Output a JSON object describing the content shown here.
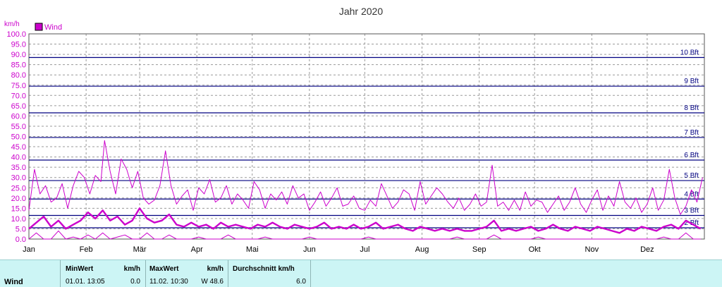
{
  "chart_data": {
    "type": "line",
    "title": "Jahr 2020",
    "ylabel": "km/h",
    "ylim": [
      0,
      100
    ],
    "yticks": [
      "0.0",
      "5.0",
      "10.0",
      "15.0",
      "20.0",
      "25.0",
      "30.0",
      "35.0",
      "40.0",
      "45.0",
      "50.0",
      "55.0",
      "60.0",
      "65.0",
      "70.0",
      "75.0",
      "80.0",
      "85.0",
      "90.0",
      "95.0",
      "100.0"
    ],
    "x_months": [
      "Jan",
      "Feb",
      "Mär",
      "Apr",
      "Mai",
      "Jun",
      "Jul",
      "Aug",
      "Sep",
      "Okt",
      "Nov",
      "Dez"
    ],
    "xlim": [
      0,
      366
    ],
    "legend": {
      "label": "Wind",
      "position": "top-left",
      "color": "#cc00cc"
    },
    "grid": true,
    "beaufort_lines": [
      {
        "label": "2 Bft",
        "value": 5.5
      },
      {
        "label": "3 Bft",
        "value": 11.5
      },
      {
        "label": "4 Bft",
        "value": 19.5
      },
      {
        "label": "5 Bft",
        "value": 28.5
      },
      {
        "label": "6 Bft",
        "value": 38.5
      },
      {
        "label": "7 Bft",
        "value": 49.5
      },
      {
        "label": "8 Bft",
        "value": 61.5
      },
      {
        "label": "9 Bft",
        "value": 74.5
      },
      {
        "label": "10 Bft",
        "value": 88.5
      }
    ],
    "series": [
      {
        "name": "Wind",
        "kind": "max",
        "color": "#cc00cc",
        "x": [
          0,
          3,
          6,
          9,
          12,
          15,
          18,
          21,
          24,
          27,
          30,
          33,
          36,
          39,
          41,
          44,
          47,
          50,
          53,
          56,
          59,
          62,
          65,
          68,
          71,
          74,
          77,
          80,
          83,
          86,
          89,
          92,
          95,
          98,
          101,
          104,
          107,
          110,
          113,
          116,
          119,
          122,
          125,
          128,
          131,
          134,
          137,
          140,
          143,
          146,
          149,
          152,
          155,
          158,
          161,
          164,
          167,
          170,
          173,
          176,
          179,
          182,
          185,
          188,
          191,
          194,
          197,
          200,
          203,
          206,
          209,
          212,
          215,
          218,
          221,
          224,
          227,
          230,
          233,
          236,
          239,
          242,
          245,
          248,
          251,
          254,
          257,
          260,
          263,
          266,
          269,
          272,
          275,
          278,
          281,
          284,
          287,
          290,
          293,
          296,
          299,
          302,
          305,
          308,
          311,
          314,
          317,
          320,
          323,
          326,
          329,
          332,
          335,
          338,
          341,
          344,
          347,
          350,
          353,
          356,
          359,
          362,
          365
        ],
        "values": [
          14,
          34,
          22,
          26,
          18,
          20,
          27,
          15,
          26,
          33,
          30,
          22,
          31,
          28,
          48,
          33,
          22,
          39,
          34,
          25,
          33,
          20,
          17,
          19,
          26,
          43,
          26,
          17,
          21,
          24,
          14,
          25,
          22,
          29,
          18,
          20,
          26,
          17,
          22,
          19,
          15,
          28,
          24,
          15,
          22,
          19,
          23,
          17,
          26,
          20,
          22,
          14,
          18,
          23,
          16,
          20,
          25,
          16,
          17,
          21,
          15,
          14,
          19,
          16,
          27,
          21,
          15,
          18,
          24,
          22,
          14,
          28,
          17,
          21,
          25,
          22,
          18,
          15,
          20,
          14,
          17,
          22,
          16,
          18,
          36,
          16,
          18,
          14,
          19,
          14,
          23,
          16,
          19,
          18,
          13,
          17,
          21,
          14,
          18,
          25,
          17,
          13,
          19,
          24,
          14,
          21,
          16,
          28,
          18,
          15,
          20,
          13,
          17,
          25,
          14,
          19,
          34,
          20,
          12,
          16,
          24,
          18,
          30
        ]
      },
      {
        "name": "Wind",
        "kind": "avg",
        "color": "#cc00cc",
        "x": [
          0,
          4,
          8,
          12,
          16,
          20,
          24,
          28,
          32,
          36,
          40,
          44,
          48,
          52,
          56,
          60,
          64,
          68,
          72,
          76,
          80,
          84,
          88,
          92,
          96,
          100,
          104,
          108,
          112,
          116,
          120,
          124,
          128,
          132,
          136,
          140,
          144,
          148,
          152,
          156,
          160,
          164,
          168,
          172,
          176,
          180,
          184,
          188,
          192,
          196,
          200,
          204,
          208,
          212,
          216,
          220,
          224,
          228,
          232,
          236,
          240,
          244,
          248,
          252,
          256,
          260,
          264,
          268,
          272,
          276,
          280,
          284,
          288,
          292,
          296,
          300,
          304,
          308,
          312,
          316,
          320,
          324,
          328,
          332,
          336,
          340,
          344,
          348,
          352,
          356,
          360,
          364
        ],
        "values": [
          5,
          8,
          11,
          6,
          9,
          5,
          7,
          9,
          13,
          10,
          14,
          9,
          11,
          7,
          9,
          15,
          10,
          8,
          9,
          12,
          7,
          6,
          8,
          6,
          7,
          5,
          8,
          6,
          7,
          6,
          5,
          7,
          6,
          8,
          6,
          5,
          7,
          6,
          5,
          6,
          8,
          5,
          6,
          5,
          7,
          5,
          6,
          8,
          5,
          6,
          7,
          5,
          4,
          6,
          5,
          4,
          5,
          4,
          5,
          4,
          4,
          5,
          6,
          9,
          4,
          5,
          4,
          5,
          6,
          4,
          5,
          7,
          5,
          4,
          6,
          5,
          4,
          6,
          5,
          4,
          3,
          5,
          4,
          6,
          5,
          4,
          6,
          7,
          5,
          9,
          7,
          5
        ]
      },
      {
        "name": "Wind",
        "kind": "min",
        "color": "#cc00cc",
        "x": [
          0,
          4,
          8,
          12,
          16,
          20,
          24,
          28,
          32,
          36,
          40,
          44,
          48,
          52,
          56,
          60,
          64,
          68,
          72,
          76,
          80,
          84,
          88,
          92,
          96,
          100,
          104,
          108,
          112,
          116,
          120,
          124,
          128,
          132,
          136,
          140,
          144,
          148,
          152,
          156,
          160,
          164,
          168,
          172,
          176,
          180,
          184,
          188,
          192,
          196,
          200,
          204,
          208,
          212,
          216,
          220,
          224,
          228,
          232,
          236,
          240,
          244,
          248,
          252,
          256,
          260,
          264,
          268,
          272,
          276,
          280,
          284,
          288,
          292,
          296,
          300,
          304,
          308,
          312,
          316,
          320,
          324,
          328,
          332,
          336,
          340,
          344,
          348,
          352,
          356,
          360,
          364
        ],
        "values": [
          0,
          3,
          0,
          0,
          4,
          0,
          1,
          0,
          2,
          0,
          3,
          0,
          1,
          2,
          0,
          0,
          3,
          0,
          0,
          2,
          0,
          0,
          0,
          1,
          0,
          0,
          0,
          2,
          0,
          0,
          0,
          0,
          1,
          0,
          0,
          0,
          0,
          0,
          1,
          0,
          0,
          0,
          0,
          0,
          0,
          0,
          1,
          0,
          0,
          0,
          0,
          0,
          0,
          0,
          0,
          0,
          0,
          0,
          1,
          0,
          0,
          0,
          0,
          2,
          0,
          0,
          0,
          0,
          0,
          1,
          0,
          0,
          0,
          0,
          0,
          0,
          0,
          0,
          0,
          0,
          0,
          0,
          0,
          0,
          0,
          0,
          1,
          0,
          0,
          3,
          0,
          0
        ]
      }
    ]
  },
  "stats": {
    "row_label": "Wind",
    "min": {
      "header": "MinWert",
      "unit": "km/h",
      "datetime": "01.01.  13:05",
      "value": "0.0"
    },
    "max": {
      "header": "MaxWert",
      "unit": "km/h",
      "datetime": "11.02.  10:30",
      "value": "W 48.6"
    },
    "avg": {
      "header": "Durchschnitt km/h",
      "value": "6.0"
    }
  }
}
